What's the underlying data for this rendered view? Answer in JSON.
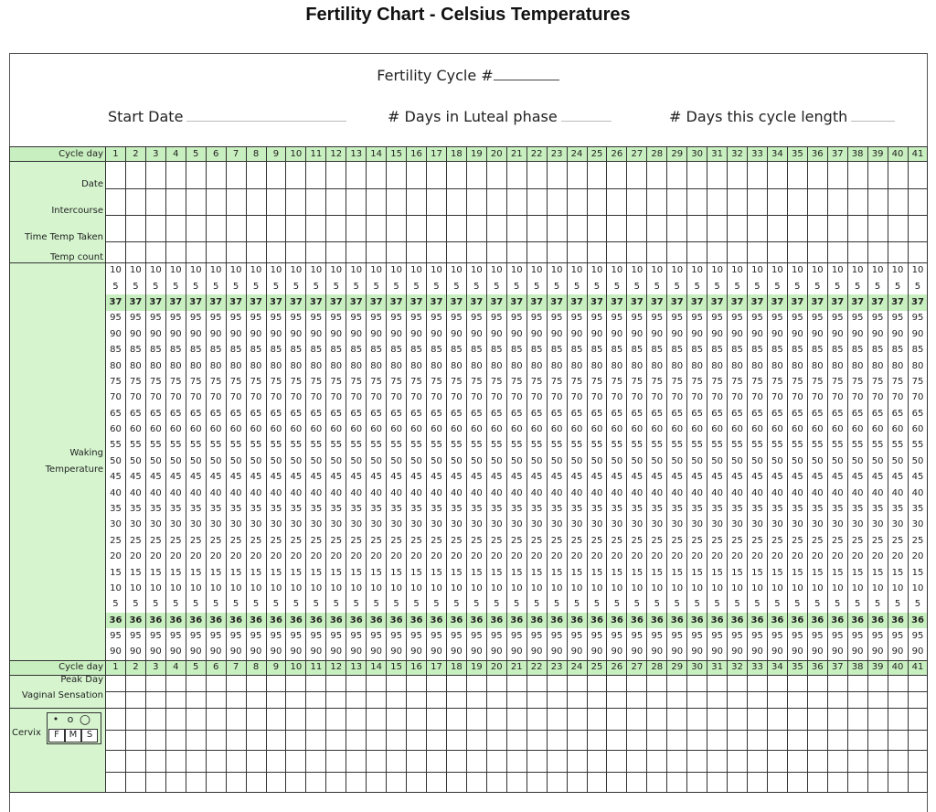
{
  "title": "Fertility Chart - Celsius Temperatures",
  "header": {
    "cycle_number_label": "Fertility Cycle #",
    "start_date_label": "Start Date",
    "luteal_label": "# Days in Luteal phase",
    "cycle_length_label": "# Days this cycle length"
  },
  "grid": {
    "cycle_day_label": "Cycle day",
    "days": [
      "1",
      "2",
      "3",
      "4",
      "5",
      "6",
      "7",
      "8",
      "9",
      "10",
      "11",
      "12",
      "13",
      "14",
      "15",
      "16",
      "17",
      "18",
      "19",
      "20",
      "21",
      "22",
      "23",
      "24",
      "25",
      "26",
      "27",
      "28",
      "29",
      "30",
      "31",
      "32",
      "33",
      "34",
      "35",
      "36",
      "37",
      "38",
      "39",
      "40",
      "41"
    ],
    "top_rows": [
      "Date",
      "Intercourse",
      "Time Temp Taken",
      "Temp count"
    ],
    "temp_label_line1": "Waking",
    "temp_label_line2": "Temperature",
    "temp_values": [
      "10",
      "5",
      "37",
      "95",
      "90",
      "85",
      "80",
      "75",
      "70",
      "65",
      "60",
      "55",
      "50",
      "45",
      "40",
      "35",
      "30",
      "25",
      "20",
      "15",
      "10",
      "5",
      "36",
      "95",
      "90"
    ],
    "highlighted_values": [
      "37",
      "36"
    ],
    "bottom_rows": [
      "Peak Day",
      "Vaginal Sensation"
    ],
    "cervix_label": "Cervix",
    "cervix_key": {
      "top_symbols": [
        "•",
        "o",
        "○"
      ],
      "letters": [
        "F",
        "M",
        "S"
      ]
    }
  }
}
